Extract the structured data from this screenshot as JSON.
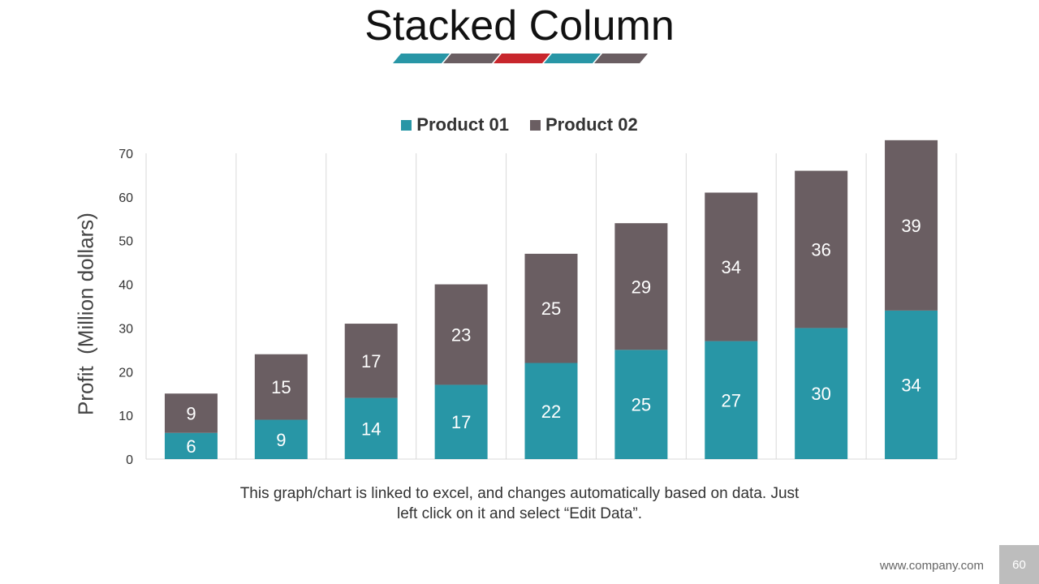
{
  "slide": {
    "title": "Stacked Column",
    "caption": "This graph/chart is linked to excel, and changes automatically based on data. Just left click on it and select “Edit Data”.",
    "footer_url": "www.company.com",
    "page_number": "60"
  },
  "colors": {
    "product01": "#2896a6",
    "product02": "#6a5e62",
    "accent_red": "#c8262c",
    "gridline": "#d9d9d9"
  },
  "chart_data": {
    "type": "bar",
    "stacked": true,
    "title": "",
    "xlabel": "",
    "ylabel": "Profit  (Million dollars)",
    "ylim": [
      0,
      70
    ],
    "yticks": [
      0,
      10,
      20,
      30,
      40,
      50,
      60,
      70
    ],
    "categories": [
      "",
      "",
      "",
      "",
      "",
      "",
      "",
      "",
      ""
    ],
    "legend_position": "top",
    "grid": "vertical",
    "series": [
      {
        "name": "Product 01",
        "values": [
          6,
          9,
          14,
          17,
          22,
          25,
          27,
          30,
          34
        ]
      },
      {
        "name": "Product 02",
        "values": [
          9,
          15,
          17,
          23,
          25,
          29,
          34,
          36,
          39
        ]
      }
    ]
  }
}
